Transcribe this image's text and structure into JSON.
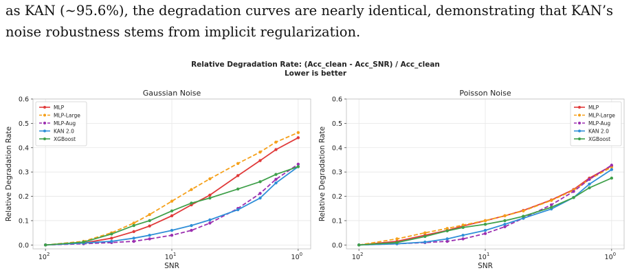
{
  "body": {
    "line1": "as KAN (∼95.6%), the degradation curves are nearly identical, demonstrating that KAN’s",
    "line2": "noise robustness stems from implicit regularization."
  },
  "figure": {
    "suptitle_line1": "Relative Degradation Rate: (Acc_clean - Acc_SNR) / Acc_clean",
    "suptitle_line2": "Lower is better"
  },
  "chart_data": [
    {
      "type": "line",
      "title": "Gaussian Noise",
      "xlabel": "SNR",
      "ylabel": "Relative Degradation Rate",
      "xscale": "log",
      "x_reversed": true,
      "xlim": [
        100,
        1
      ],
      "ylim": [
        0,
        0.6
      ],
      "xticks": [
        {
          "value": 100,
          "base": "10",
          "exp": "2"
        },
        {
          "value": 10,
          "base": "10",
          "exp": "1"
        },
        {
          "value": 1,
          "base": "10",
          "exp": "0"
        }
      ],
      "yticks": [
        "0.0",
        "0.1",
        "0.2",
        "0.3",
        "0.4",
        "0.5",
        "0.6"
      ],
      "grid": true,
      "legend_position": "top-left",
      "x": [
        100,
        50,
        30,
        20,
        15,
        10,
        7,
        5,
        3,
        2,
        1.5,
        1
      ],
      "series": [
        {
          "name": "MLP",
          "color": "#e03a3a",
          "dashed": false,
          "values": [
            0.0,
            0.008,
            0.028,
            0.055,
            0.078,
            0.12,
            0.165,
            0.205,
            0.285,
            0.347,
            0.392,
            0.441
          ]
        },
        {
          "name": "MLP-Large",
          "color": "#f5a01a",
          "dashed": true,
          "values": [
            0.0,
            0.015,
            0.05,
            0.09,
            0.125,
            0.18,
            0.228,
            0.272,
            0.335,
            0.382,
            0.423,
            0.462
          ]
        },
        {
          "name": "MLP-Aug",
          "color": "#9b2fb0",
          "dashed": true,
          "values": [
            0.0,
            0.005,
            0.01,
            0.015,
            0.025,
            0.04,
            0.06,
            0.09,
            0.15,
            0.212,
            0.27,
            0.332
          ]
        },
        {
          "name": "KAN 2.0",
          "color": "#2f8fd8",
          "dashed": false,
          "values": [
            0.0,
            0.008,
            0.015,
            0.028,
            0.04,
            0.06,
            0.08,
            0.103,
            0.145,
            0.193,
            0.255,
            0.322
          ]
        },
        {
          "name": "XGBoost",
          "color": "#3fa04a",
          "dashed": false,
          "values": [
            0.0,
            0.012,
            0.045,
            0.08,
            0.1,
            0.14,
            0.172,
            0.193,
            0.23,
            0.26,
            0.29,
            0.322
          ]
        }
      ]
    },
    {
      "type": "line",
      "title": "Poisson Noise",
      "xlabel": "SNR",
      "ylabel": "Relative Degradation Rate",
      "xscale": "log",
      "x_reversed": true,
      "xlim": [
        100,
        1
      ],
      "ylim": [
        0,
        0.6
      ],
      "xticks": [
        {
          "value": 100,
          "base": "10",
          "exp": "2"
        },
        {
          "value": 10,
          "base": "10",
          "exp": "1"
        },
        {
          "value": 1,
          "base": "10",
          "exp": "0"
        }
      ],
      "yticks": [
        "0.0",
        "0.1",
        "0.2",
        "0.3",
        "0.4",
        "0.5",
        "0.6"
      ],
      "grid": true,
      "legend_position": "top-right",
      "x": [
        100,
        50,
        30,
        20,
        15,
        10,
        7,
        5,
        3,
        2,
        1.5,
        1
      ],
      "series": [
        {
          "name": "MLP",
          "color": "#e03a3a",
          "dashed": false,
          "values": [
            0.0,
            0.015,
            0.04,
            0.06,
            0.078,
            0.1,
            0.12,
            0.142,
            0.185,
            0.228,
            0.275,
            0.325
          ]
        },
        {
          "name": "MLP-Large",
          "color": "#f5a01a",
          "dashed": true,
          "values": [
            0.0,
            0.025,
            0.05,
            0.068,
            0.082,
            0.1,
            0.12,
            0.14,
            0.183,
            0.225,
            0.27,
            0.32
          ]
        },
        {
          "name": "MLP-Aug",
          "color": "#9b2fb0",
          "dashed": true,
          "values": [
            0.0,
            0.005,
            0.01,
            0.015,
            0.025,
            0.047,
            0.075,
            0.11,
            0.165,
            0.22,
            0.27,
            0.328
          ]
        },
        {
          "name": "KAN 2.0",
          "color": "#2f8fd8",
          "dashed": false,
          "values": [
            0.0,
            0.005,
            0.012,
            0.025,
            0.04,
            0.06,
            0.085,
            0.11,
            0.148,
            0.195,
            0.25,
            0.31
          ]
        },
        {
          "name": "XGBoost",
          "color": "#3fa04a",
          "dashed": false,
          "values": [
            0.0,
            0.01,
            0.035,
            0.058,
            0.072,
            0.085,
            0.1,
            0.118,
            0.155,
            0.195,
            0.235,
            0.275
          ]
        }
      ]
    }
  ]
}
